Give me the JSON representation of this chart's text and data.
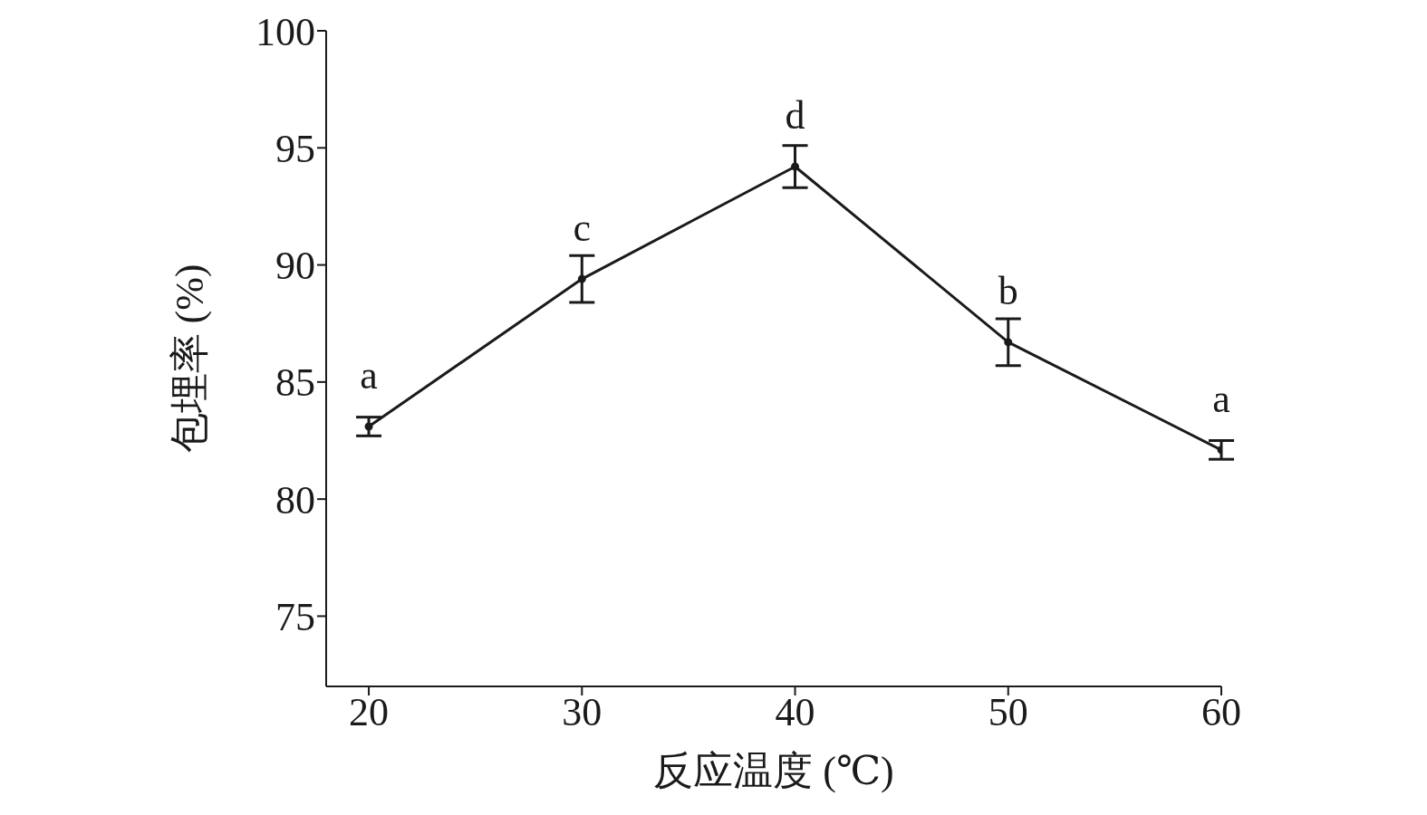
{
  "chart_data": {
    "type": "line",
    "xlabel": "反应温度 (℃)",
    "ylabel": "包埋率 (%)",
    "x": [
      20,
      30,
      40,
      50,
      60
    ],
    "series": [
      {
        "color": "#1a1a1a",
        "values": [
          83.1,
          89.4,
          94.2,
          86.7,
          82.1
        ],
        "errors": [
          0.4,
          1.0,
          0.9,
          1.0,
          0.4
        ]
      }
    ],
    "xlim": [
      18,
      60
    ],
    "xticks": [
      20,
      30,
      40,
      50,
      60
    ],
    "ylim": [
      72,
      100
    ],
    "yticks": [
      75,
      80,
      85,
      90,
      95,
      100
    ],
    "grid": false,
    "legend": false,
    "marker": "circle",
    "line_style": "solid",
    "annotations": [
      {
        "text": "a",
        "x": 20,
        "y": 83.1
      },
      {
        "text": "c",
        "x": 30,
        "y": 89.4
      },
      {
        "text": "d",
        "x": 40,
        "y": 94.2
      },
      {
        "text": "b",
        "x": 50,
        "y": 86.7
      },
      {
        "text": "a",
        "x": 60,
        "y": 82.1
      }
    ]
  }
}
